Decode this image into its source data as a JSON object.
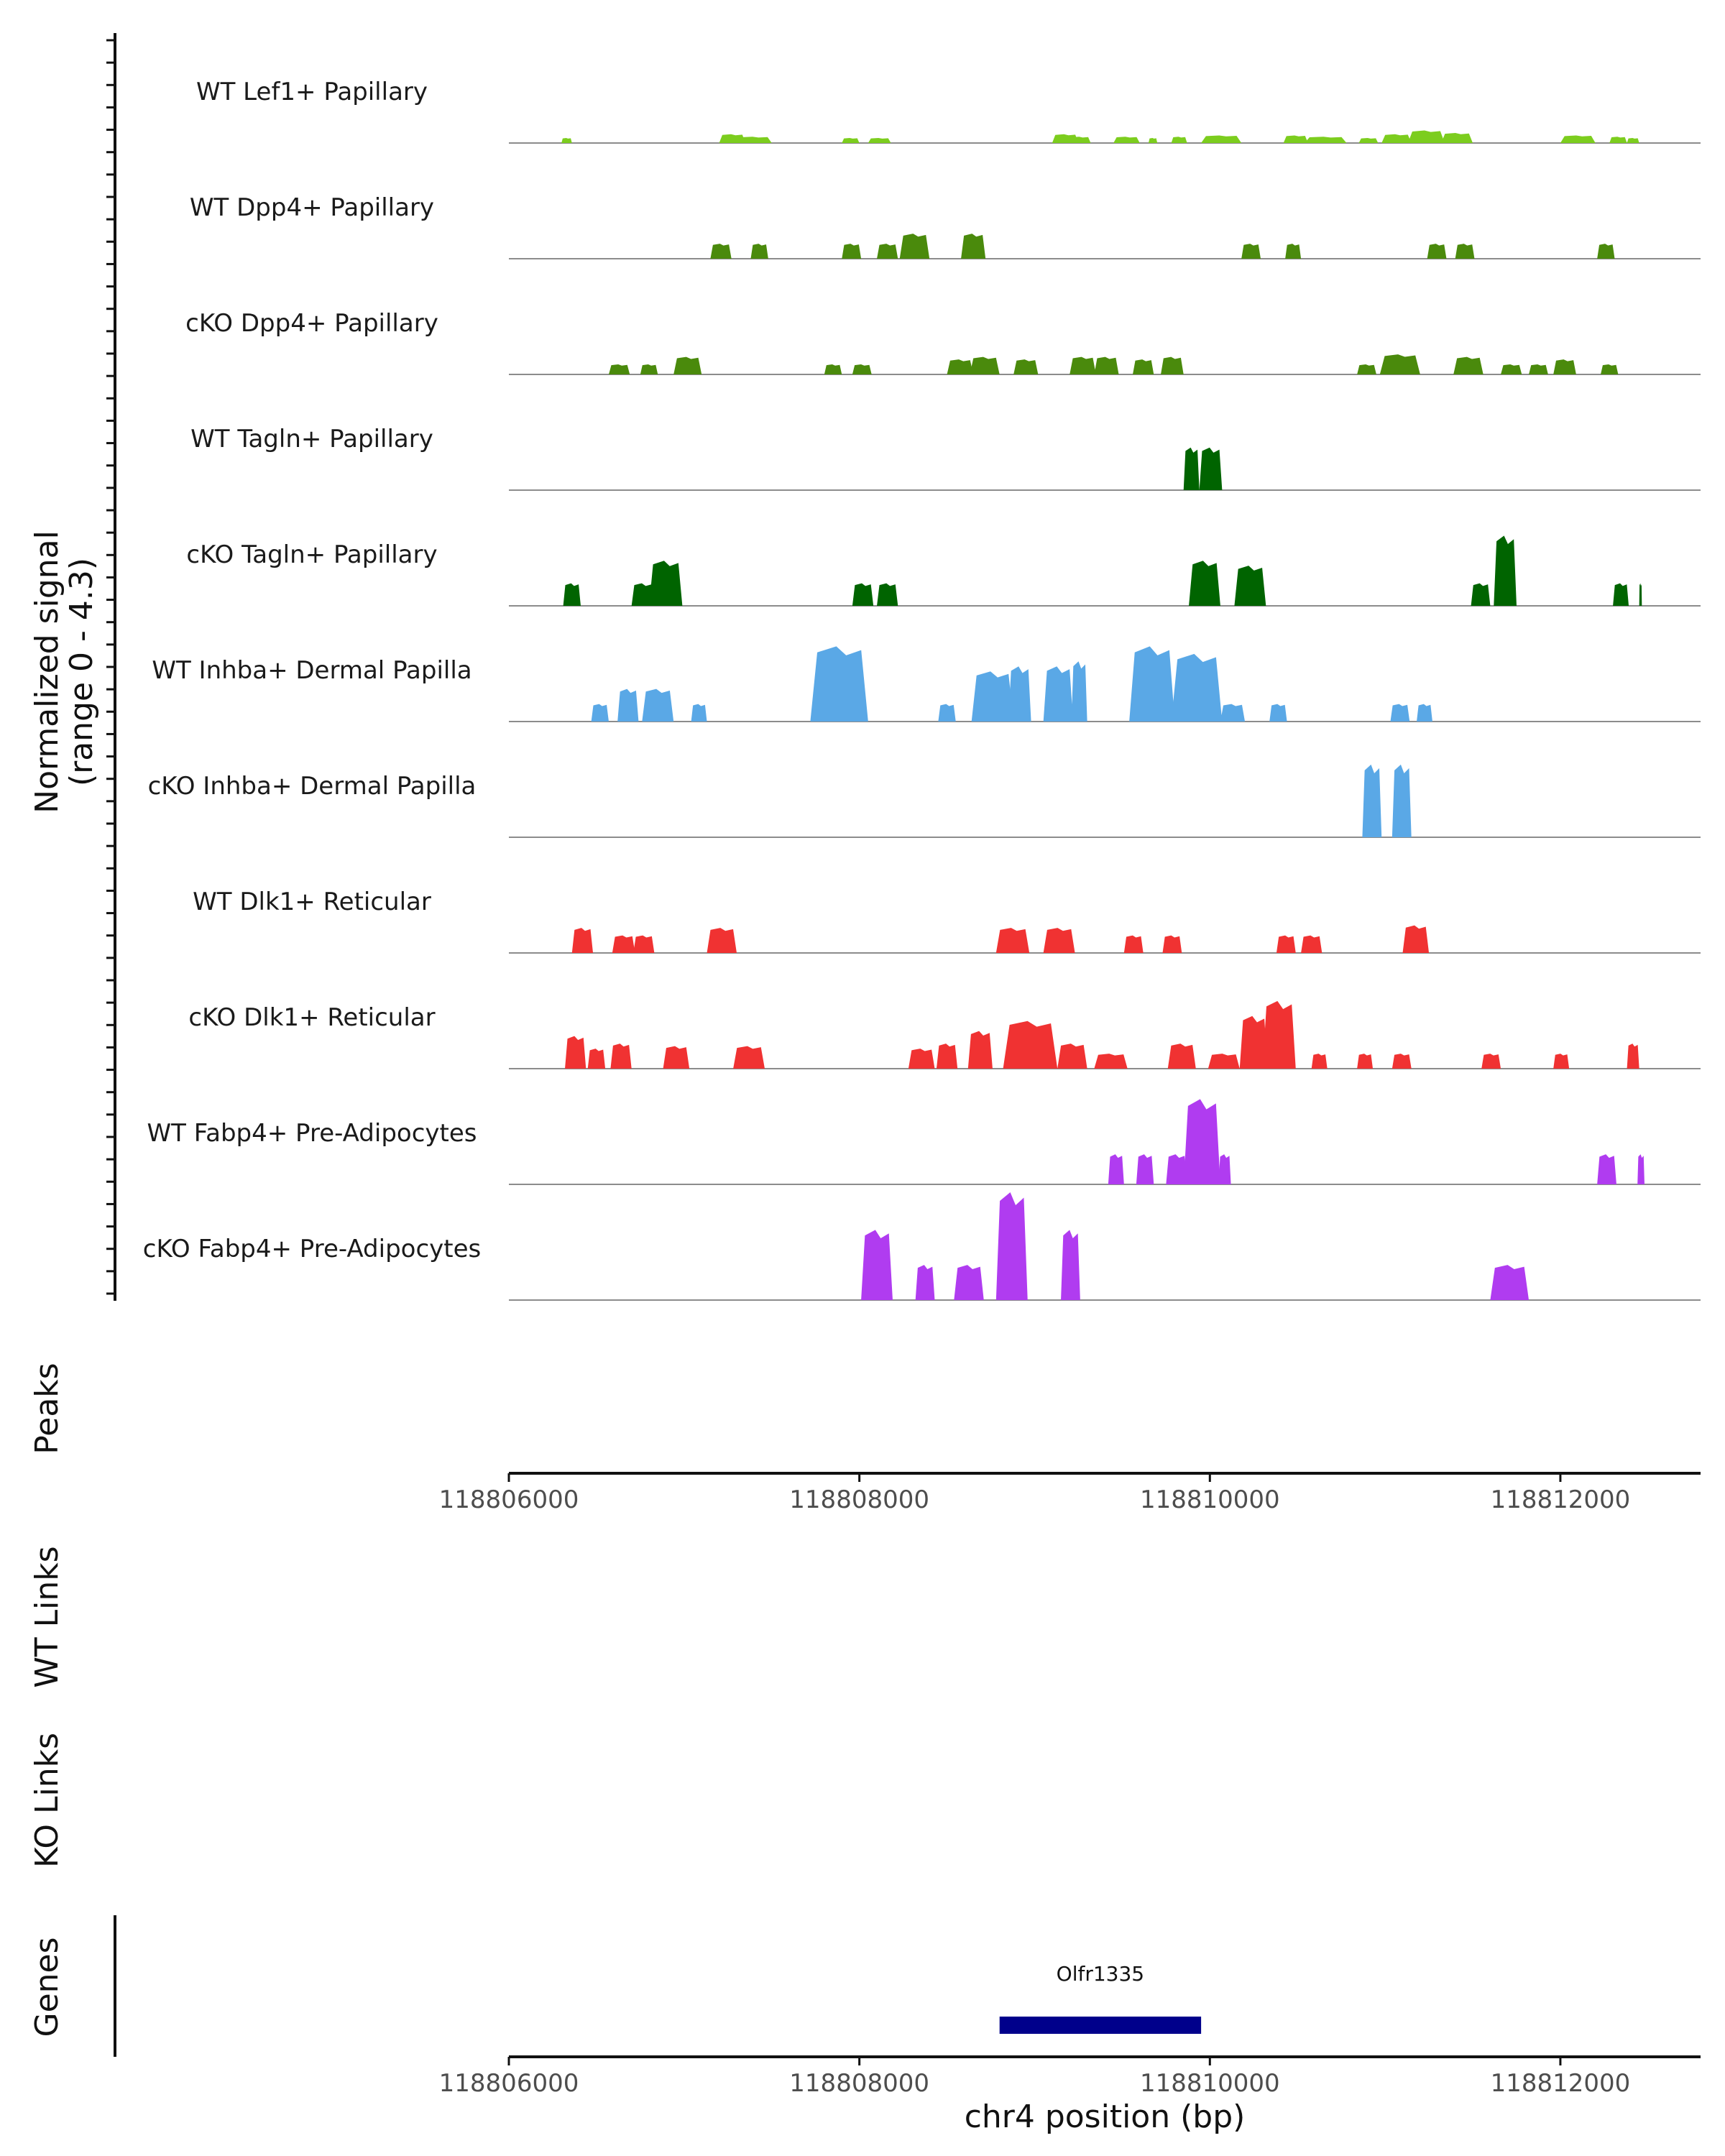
{
  "chart_data": {
    "type": "area",
    "description_text": "genome coverage tracks",
    "y_axis_title": "Normalized signal",
    "y_axis_range_label": "(range 0 - 4.3)",
    "ylim": [
      0,
      4.3
    ],
    "xlim": [
      118806000,
      118812800
    ],
    "x_ticks": [
      118806000,
      118808000,
      118810000,
      118812000
    ],
    "x_tick_labels": [
      "118806000",
      "118808000",
      "118810000",
      "118812000"
    ],
    "xlabel": "chr4 position (bp)",
    "section_labels": {
      "peaks": "Peaks",
      "wt_links": "WT Links",
      "ko_links": "KO Links",
      "genes": "Genes"
    },
    "genes": [
      {
        "name": "Olfr1335",
        "start": 118808800,
        "end": 118809950,
        "color": "#00008b"
      }
    ],
    "tracks": [
      {
        "name": "WT Lef1+ Papillary",
        "color": "#7ccd1e",
        "peaks": [
          [
            118806300,
            118806360,
            0.2
          ],
          [
            118807200,
            118807350,
            0.35
          ],
          [
            118807300,
            118807500,
            0.25
          ],
          [
            118807900,
            118808000,
            0.2
          ],
          [
            118808050,
            118808180,
            0.2
          ],
          [
            118809100,
            118809250,
            0.35
          ],
          [
            118809200,
            118809320,
            0.25
          ],
          [
            118809450,
            118809600,
            0.25
          ],
          [
            118809650,
            118809700,
            0.2
          ],
          [
            118809780,
            118809870,
            0.25
          ],
          [
            118809950,
            118810180,
            0.3
          ],
          [
            118810420,
            118810560,
            0.3
          ],
          [
            118810540,
            118810780,
            0.25
          ],
          [
            118810850,
            118810960,
            0.2
          ],
          [
            118810980,
            118811150,
            0.35
          ],
          [
            118811130,
            118811340,
            0.5
          ],
          [
            118811320,
            118811500,
            0.4
          ],
          [
            118812000,
            118812200,
            0.3
          ],
          [
            118812280,
            118812380,
            0.25
          ],
          [
            118812380,
            118812450,
            0.2
          ]
        ]
      },
      {
        "name": "WT Dpp4+ Papillary",
        "color": "#4a8a0c",
        "peaks": [
          [
            118807150,
            118807270,
            0.6
          ],
          [
            118807380,
            118807480,
            0.6
          ],
          [
            118807900,
            118808010,
            0.6
          ],
          [
            118808100,
            118808220,
            0.6
          ],
          [
            118808230,
            118808400,
            1.0
          ],
          [
            118808580,
            118808720,
            1.0
          ],
          [
            118810180,
            118810290,
            0.6
          ],
          [
            118810430,
            118810520,
            0.6
          ],
          [
            118811240,
            118811350,
            0.6
          ],
          [
            118811400,
            118811510,
            0.6
          ],
          [
            118812210,
            118812310,
            0.6
          ]
        ]
      },
      {
        "name": "cKO Dpp4+ Papillary",
        "color": "#4a8a0c",
        "peaks": [
          [
            118806570,
            118806690,
            0.4
          ],
          [
            118806750,
            118806850,
            0.4
          ],
          [
            118806940,
            118807100,
            0.7
          ],
          [
            118807800,
            118807900,
            0.4
          ],
          [
            118807960,
            118808070,
            0.4
          ],
          [
            118808500,
            118808650,
            0.6
          ],
          [
            118808630,
            118808800,
            0.7
          ],
          [
            118808880,
            118809020,
            0.6
          ],
          [
            118809200,
            118809350,
            0.7
          ],
          [
            118809340,
            118809480,
            0.7
          ],
          [
            118809560,
            118809680,
            0.6
          ],
          [
            118809720,
            118809850,
            0.7
          ],
          [
            118810840,
            118810950,
            0.4
          ],
          [
            118810970,
            118811200,
            0.8
          ],
          [
            118811390,
            118811560,
            0.7
          ],
          [
            118811660,
            118811780,
            0.4
          ],
          [
            118811820,
            118811930,
            0.4
          ],
          [
            118811960,
            118812090,
            0.6
          ],
          [
            118812230,
            118812330,
            0.4
          ]
        ]
      },
      {
        "name": "WT Tagln+ Papillary",
        "color": "#006400",
        "peaks": [
          [
            118809850,
            118809940,
            1.7
          ],
          [
            118809940,
            118810070,
            1.7
          ]
        ]
      },
      {
        "name": "cKO Tagln+ Papillary",
        "color": "#006400",
        "peaks": [
          [
            118806310,
            118806410,
            0.9
          ],
          [
            118806700,
            118806830,
            0.9
          ],
          [
            118806800,
            118806990,
            1.8
          ],
          [
            118807960,
            118808080,
            0.9
          ],
          [
            118808100,
            118808220,
            0.9
          ],
          [
            118809880,
            118810060,
            1.8
          ],
          [
            118810140,
            118810320,
            1.6
          ],
          [
            118811490,
            118811600,
            0.9
          ],
          [
            118811620,
            118811750,
            2.8
          ],
          [
            118812300,
            118812390,
            0.9
          ],
          [
            118812450,
            118812465,
            0.9
          ]
        ]
      },
      {
        "name": "WT Inhba+ Dermal Papilla",
        "color": "#5aa8e6",
        "peaks": [
          [
            118806470,
            118806570,
            0.7
          ],
          [
            118806620,
            118806740,
            1.3
          ],
          [
            118806760,
            118806940,
            1.3
          ],
          [
            118807040,
            118807130,
            0.7
          ],
          [
            118807720,
            118808050,
            3.0
          ],
          [
            118808450,
            118808550,
            0.7
          ],
          [
            118808640,
            118808880,
            2.0
          ],
          [
            118808850,
            118808980,
            2.2
          ],
          [
            118809050,
            118809220,
            2.2
          ],
          [
            118809210,
            118809300,
            2.4
          ],
          [
            118809540,
            118809800,
            3.0
          ],
          [
            118809780,
            118810070,
            2.7
          ],
          [
            118810060,
            118810200,
            0.7
          ],
          [
            118810340,
            118810440,
            0.7
          ],
          [
            118811030,
            118811140,
            0.7
          ],
          [
            118811180,
            118811270,
            0.7
          ]
        ]
      },
      {
        "name": "cKO Inhba+ Dermal Papilla",
        "color": "#5aa8e6",
        "peaks": [
          [
            118810870,
            118810980,
            2.9
          ],
          [
            118811040,
            118811150,
            2.9
          ]
        ]
      },
      {
        "name": "WT Dlk1+ Reticular",
        "color": "#f03232",
        "peaks": [
          [
            118806360,
            118806480,
            1.0
          ],
          [
            118806590,
            118806720,
            0.7
          ],
          [
            118806710,
            118806830,
            0.7
          ],
          [
            118807130,
            118807300,
            1.0
          ],
          [
            118808780,
            118808970,
            1.0
          ],
          [
            118809050,
            118809230,
            1.0
          ],
          [
            118809510,
            118809620,
            0.7
          ],
          [
            118809730,
            118809840,
            0.7
          ],
          [
            118810380,
            118810490,
            0.7
          ],
          [
            118810520,
            118810640,
            0.7
          ],
          [
            118811100,
            118811250,
            1.1
          ]
        ]
      },
      {
        "name": "cKO Dlk1+ Reticular",
        "color": "#f03232",
        "peaks": [
          [
            118806320,
            118806440,
            1.3
          ],
          [
            118806450,
            118806550,
            0.8
          ],
          [
            118806580,
            118806700,
            1.0
          ],
          [
            118806880,
            118807030,
            0.9
          ],
          [
            118807280,
            118807460,
            0.9
          ],
          [
            118808280,
            118808430,
            0.8
          ],
          [
            118808440,
            118808560,
            1.0
          ],
          [
            118808620,
            118808760,
            1.5
          ],
          [
            118808820,
            118809130,
            1.9
          ],
          [
            118809130,
            118809300,
            1.0
          ],
          [
            118809340,
            118809530,
            0.6
          ],
          [
            118809760,
            118809920,
            1.0
          ],
          [
            118809990,
            118810170,
            0.6
          ],
          [
            118810170,
            118810330,
            2.1
          ],
          [
            118810300,
            118810490,
            2.7
          ],
          [
            118810580,
            118810670,
            0.6
          ],
          [
            118810840,
            118810930,
            0.6
          ],
          [
            118811040,
            118811150,
            0.6
          ],
          [
            118811550,
            118811660,
            0.6
          ],
          [
            118811960,
            118812050,
            0.6
          ],
          [
            118812380,
            118812450,
            1.0
          ]
        ]
      },
      {
        "name": "WT Fabp4+ Pre-Adipocytes",
        "color": "#b03cf0",
        "peaks": [
          [
            118809420,
            118809510,
            1.2
          ],
          [
            118809580,
            118809680,
            1.2
          ],
          [
            118809750,
            118809870,
            1.2
          ],
          [
            118809850,
            118810060,
            3.4
          ],
          [
            118810050,
            118810120,
            1.2
          ],
          [
            118812210,
            118812320,
            1.2
          ],
          [
            118812440,
            118812480,
            1.2
          ]
        ]
      },
      {
        "name": "cKO Fabp4+ Pre-Adipocytes",
        "color": "#b03cf0",
        "peaks": [
          [
            118808010,
            118808190,
            2.8
          ],
          [
            118808320,
            118808430,
            1.4
          ],
          [
            118808540,
            118808710,
            1.4
          ],
          [
            118808780,
            118808960,
            4.3
          ],
          [
            118809150,
            118809260,
            2.8
          ],
          [
            118811600,
            118811820,
            1.4
          ]
        ]
      }
    ]
  }
}
